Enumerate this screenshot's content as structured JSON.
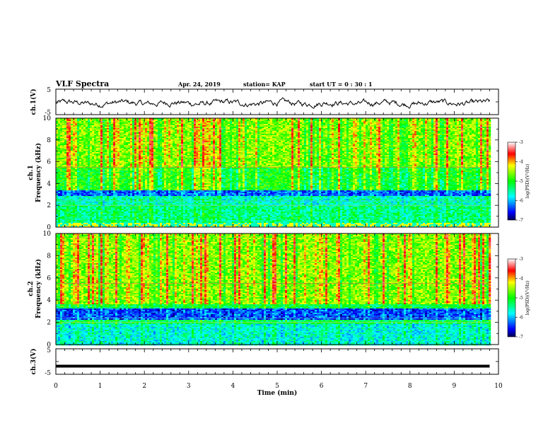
{
  "header": {
    "title": "VLF Spectra",
    "date": "Apr. 24, 2019",
    "station": "station= KAP",
    "start_time": "start  UT  =   0  : 30 : 1"
  },
  "chart_data": [
    {
      "type": "line",
      "panel": "waveform",
      "ylabel": "ch.1(V)",
      "ylim": [
        -5,
        5
      ],
      "ytick_labels": [
        "5",
        "-5"
      ],
      "series_color": "#000000",
      "x_range_min": [
        0,
        9.8
      ],
      "approx_mean_v": -0.5,
      "approx_amplitude_v": 1.5
    },
    {
      "type": "heatmap",
      "panel": "spectrogram",
      "ylabel_line1": "ch.1",
      "ylabel_line2": "Frequency  (kHz)",
      "ylim": [
        0,
        10
      ],
      "ytick_labels": [
        "0",
        "2",
        "4",
        "6",
        "8",
        "10"
      ],
      "data_extent_min": [
        0,
        9.8
      ],
      "bands_khz": [
        {
          "from": 0,
          "to": 0.4,
          "level": "mixed"
        },
        {
          "from": 0.4,
          "to": 2.0,
          "level": -5.4
        },
        {
          "from": 2.0,
          "to": 2.8,
          "level": -5.6
        },
        {
          "from": 2.8,
          "to": 3.4,
          "level": -6.3
        },
        {
          "from": 3.4,
          "to": 5.4,
          "level": -5.0
        },
        {
          "from": 5.4,
          "to": 10.0,
          "level": -4.6
        }
      ],
      "colorbar": {
        "min": -7,
        "max": -3,
        "tick_labels": [
          "-3",
          "-4",
          "-5",
          "-6",
          "-7"
        ],
        "label": "log(PSD)(V²/Hz)"
      }
    },
    {
      "type": "heatmap",
      "panel": "spectrogram",
      "ylabel_line1": "ch.2",
      "ylabel_line2": "Frequency  (kHz)",
      "ylim": [
        0,
        10
      ],
      "ytick_labels": [
        "0",
        "2",
        "4",
        "6",
        "8",
        "10"
      ],
      "data_extent_min": [
        0,
        9.8
      ],
      "bands_khz": [
        {
          "from": 0,
          "to": 1.8,
          "level": -5.7
        },
        {
          "from": 1.8,
          "to": 2.2,
          "level": -5.3
        },
        {
          "from": 2.2,
          "to": 3.3,
          "level": -6.4
        },
        {
          "from": 3.3,
          "to": 3.6,
          "level": -5.2
        },
        {
          "from": 3.6,
          "to": 10.0,
          "level": -4.6
        }
      ],
      "colorbar": {
        "min": -7,
        "max": -3,
        "tick_labels": [
          "-3",
          "-4",
          "-5",
          "-6",
          "-7"
        ],
        "label": "log(PSD)(V²/Hz)"
      }
    },
    {
      "type": "line",
      "panel": "waveform",
      "ylabel": "ch.3(V)",
      "ylim": [
        -5,
        5
      ],
      "ytick_labels": [
        "5",
        "-5"
      ],
      "series_color": "#000000",
      "x_range_min": [
        0,
        9.8
      ],
      "constant_value_v": -1.8
    }
  ],
  "x_axis": {
    "label": "Time  (min)",
    "range": [
      0,
      10
    ],
    "tick_labels": [
      "0",
      "1",
      "2",
      "3",
      "4",
      "5",
      "6",
      "7",
      "8",
      "9",
      "10"
    ]
  },
  "colors": {
    "axis": "#000000",
    "background": "#ffffff"
  }
}
